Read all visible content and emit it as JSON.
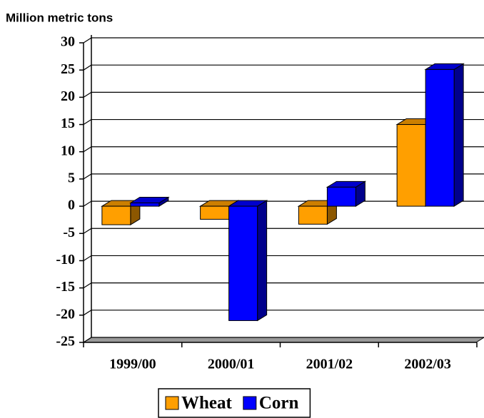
{
  "chart_data": {
    "type": "bar3d",
    "y_label": "Million metric tons",
    "categories": [
      "1999/00",
      "2000/01",
      "2001/02",
      "2002/03"
    ],
    "series": [
      {
        "name": "Wheat",
        "color": "#ff9f00",
        "values": [
          -3.4,
          -2.4,
          -3.3,
          15
        ]
      },
      {
        "name": "Corn",
        "color": "#0000ff",
        "values": [
          0.6,
          -21,
          3.5,
          25.1
        ]
      }
    ],
    "ylim": [
      -25,
      30
    ],
    "yticks": [
      -25,
      -20,
      -15,
      -10,
      -5,
      0,
      5,
      10,
      15,
      20,
      25,
      30
    ],
    "grid": true,
    "legend": "bottom"
  }
}
